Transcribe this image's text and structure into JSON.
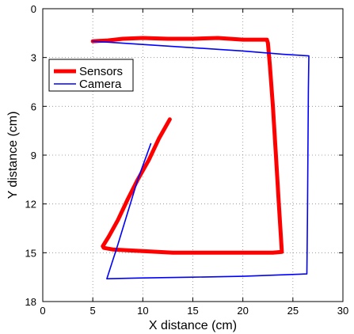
{
  "chart_data": {
    "type": "line",
    "title": "",
    "xlabel": "X distance (cm)",
    "ylabel": "Y distance (cm)",
    "xlim": [
      0,
      30
    ],
    "ylim": [
      0,
      18
    ],
    "y_inverted": true,
    "xticks": [
      0,
      5,
      10,
      15,
      20,
      25,
      30
    ],
    "yticks": [
      0,
      3,
      6,
      9,
      12,
      15,
      18
    ],
    "grid": true,
    "legend_position": "top-left",
    "series": [
      {
        "name": "Sensors",
        "color": "#ff0000",
        "points": [
          [
            12.7,
            6.8
          ],
          [
            11.6,
            8.0
          ],
          [
            10.6,
            9.3
          ],
          [
            9.5,
            10.5
          ],
          [
            8.5,
            11.7
          ],
          [
            7.5,
            13.0
          ],
          [
            6.6,
            14.0
          ],
          [
            6.0,
            14.6
          ],
          [
            6.1,
            14.7
          ],
          [
            7.0,
            14.8
          ],
          [
            10.0,
            14.9
          ],
          [
            13.0,
            15.0
          ],
          [
            16.0,
            15.0
          ],
          [
            20.0,
            15.0
          ],
          [
            23.0,
            15.0
          ],
          [
            23.9,
            14.95
          ],
          [
            23.6,
            12.0
          ],
          [
            23.3,
            9.0
          ],
          [
            23.0,
            6.0
          ],
          [
            22.7,
            3.5
          ],
          [
            22.5,
            2.1
          ],
          [
            22.4,
            1.9
          ],
          [
            20.0,
            1.9
          ],
          [
            17.5,
            1.8
          ],
          [
            15.0,
            1.85
          ],
          [
            12.5,
            1.85
          ],
          [
            10.0,
            1.8
          ],
          [
            8.0,
            1.85
          ],
          [
            6.5,
            1.95
          ],
          [
            5.0,
            2.0
          ]
        ]
      },
      {
        "name": "Camera",
        "color": "#0000ff",
        "points": [
          [
            10.8,
            8.3
          ],
          [
            9.5,
            10.5
          ],
          [
            8.5,
            12.5
          ],
          [
            7.5,
            14.5
          ],
          [
            6.4,
            16.6
          ],
          [
            10.0,
            16.55
          ],
          [
            15.0,
            16.5
          ],
          [
            20.0,
            16.45
          ],
          [
            26.4,
            16.3
          ],
          [
            26.45,
            13.0
          ],
          [
            26.5,
            9.0
          ],
          [
            26.55,
            5.0
          ],
          [
            26.6,
            2.9
          ],
          [
            24.0,
            2.8
          ],
          [
            20.0,
            2.6
          ],
          [
            15.0,
            2.4
          ],
          [
            10.0,
            2.2
          ],
          [
            5.0,
            2.0
          ]
        ]
      }
    ]
  }
}
